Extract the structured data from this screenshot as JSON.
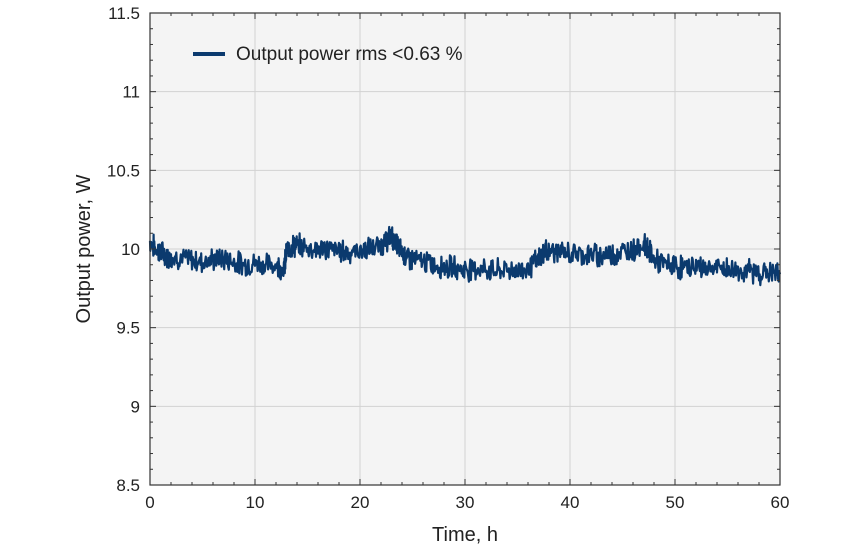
{
  "chart_data": {
    "type": "line",
    "title": "",
    "xlabel": "Time, h",
    "ylabel": "Output power, W",
    "xlim": [
      0,
      60
    ],
    "ylim": [
      8.5,
      11.5
    ],
    "xticks": [
      0,
      10,
      20,
      30,
      40,
      50,
      60
    ],
    "yticks": [
      8.5,
      9,
      9.5,
      10,
      10.5,
      11,
      11.5
    ],
    "xtick_labels": [
      "0",
      "10",
      "20",
      "30",
      "40",
      "50",
      "60"
    ],
    "ytick_labels": [
      "8.5",
      "9",
      "9.5",
      "10",
      "10.5",
      "11",
      "11.5"
    ],
    "grid": true,
    "legend_position": "top-left",
    "series": [
      {
        "name": "Output power rms <0.63 %",
        "color": "#0b3a6e",
        "x": [
          0,
          0.5,
          1,
          1.5,
          2,
          3,
          4,
          5,
          6,
          7,
          8,
          9,
          10,
          11,
          12,
          12.8,
          13,
          13.5,
          14,
          15,
          16,
          17,
          18,
          19,
          20,
          21,
          22,
          22.5,
          23,
          23.5,
          24,
          24.5,
          25,
          26,
          27,
          28,
          29,
          30,
          31,
          32,
          33,
          34,
          35,
          36,
          37,
          37.5,
          38,
          39,
          40,
          41,
          42,
          43,
          44,
          45,
          46,
          47,
          47.5,
          48,
          49,
          50,
          51,
          52,
          53,
          54,
          55,
          56,
          57,
          58,
          59,
          60
        ],
        "y": [
          10.05,
          10.0,
          9.98,
          9.96,
          9.95,
          9.94,
          9.93,
          9.92,
          9.93,
          9.94,
          9.92,
          9.9,
          9.91,
          9.9,
          9.9,
          9.88,
          9.98,
          10.02,
          10.02,
          10.01,
          10.0,
          10.0,
          9.99,
          9.98,
          9.99,
          10.0,
          10.02,
          10.05,
          10.08,
          10.03,
          9.98,
          9.95,
          9.93,
          9.92,
          9.9,
          9.89,
          9.88,
          9.87,
          9.88,
          9.87,
          9.86,
          9.87,
          9.86,
          9.88,
          9.93,
          9.98,
          9.99,
          9.98,
          9.97,
          9.97,
          9.96,
          9.96,
          9.97,
          9.98,
          10.0,
          10.03,
          10.0,
          9.93,
          9.9,
          9.89,
          9.88,
          9.89,
          9.88,
          9.88,
          9.87,
          9.86,
          9.86,
          9.85,
          9.85,
          9.84
        ]
      }
    ]
  }
}
